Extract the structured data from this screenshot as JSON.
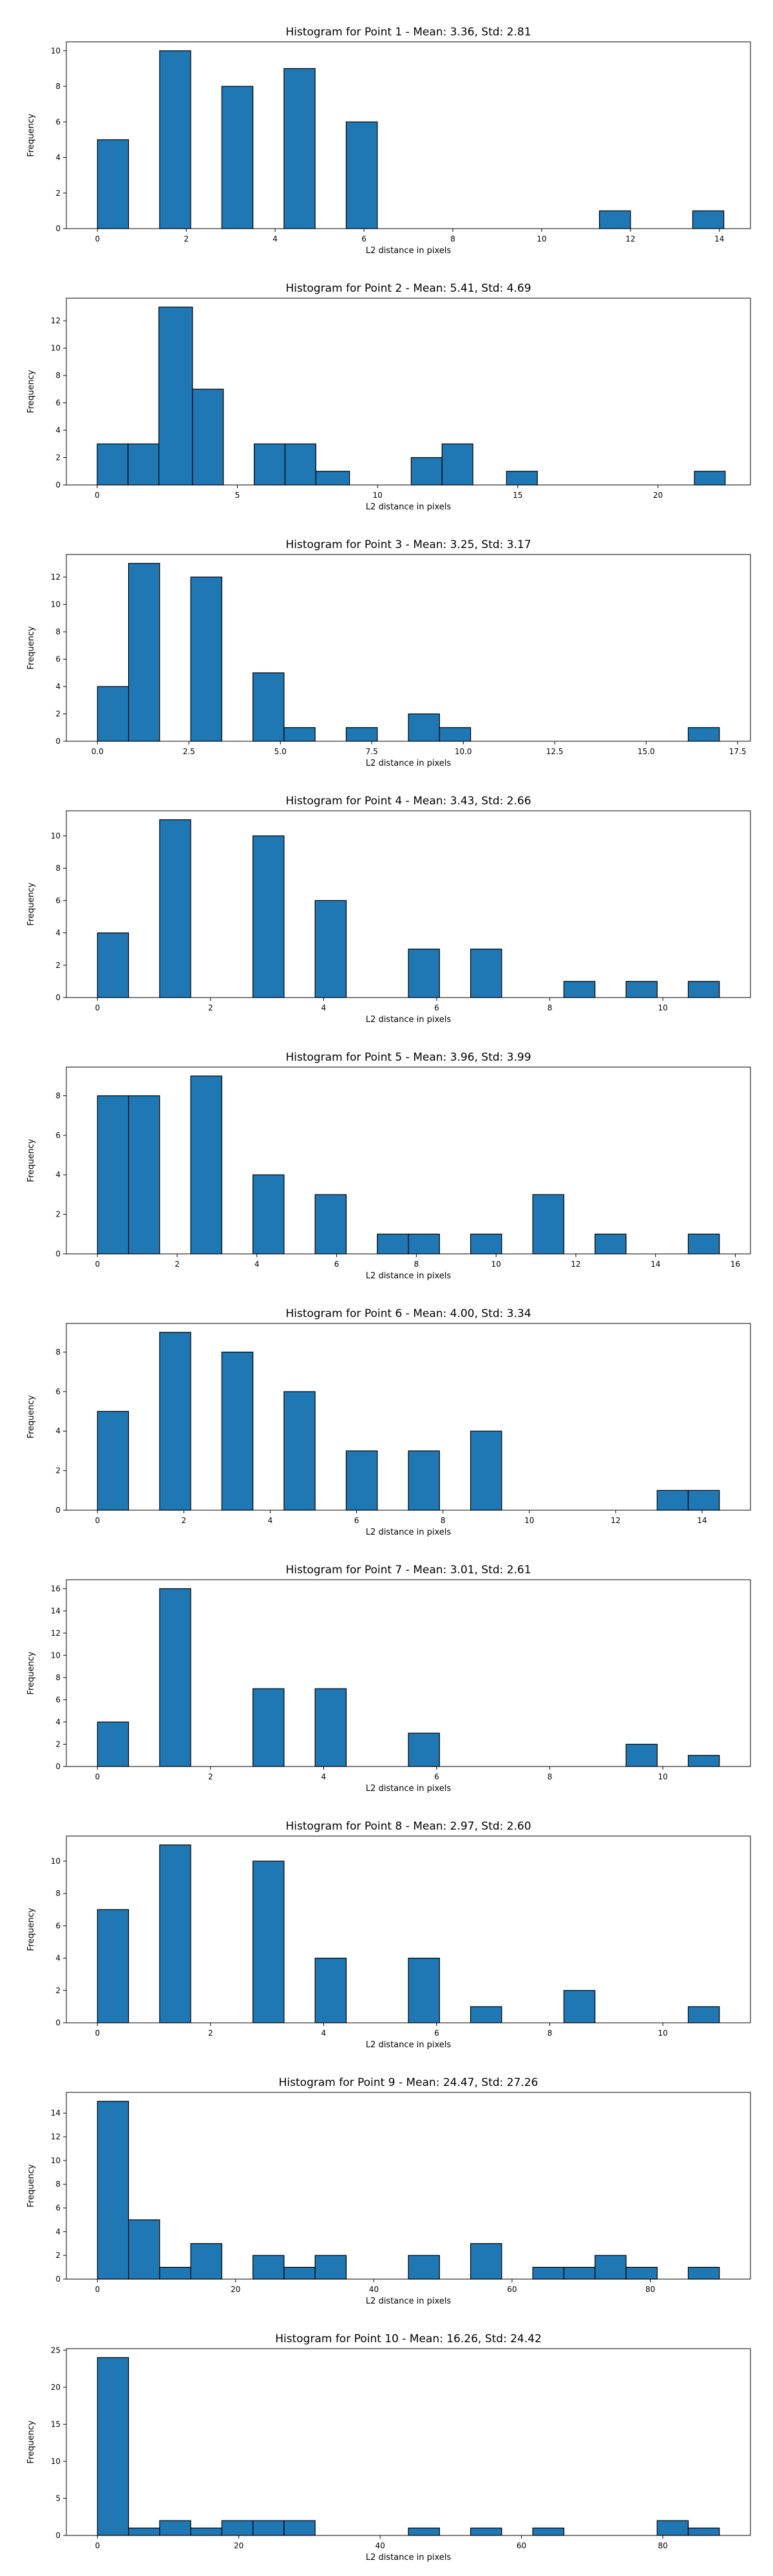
{
  "figure": {
    "background": "#ffffff",
    "bar_color": "#1f77b4",
    "edge_color": "#000000"
  },
  "chart_data": [
    {
      "type": "bar",
      "title": "Histogram for Point 1 - Mean: 3.36, Std: 2.81",
      "xlabel": "L2 distance in pixels",
      "ylabel": "Frequency",
      "xlim": [
        -0.7,
        14.7
      ],
      "ylim": [
        0,
        10.5
      ],
      "xticks": [
        0,
        2,
        4,
        6,
        8,
        10,
        12,
        14
      ],
      "xtick_labels": [
        "0",
        "2",
        "4",
        "6",
        "8",
        "10",
        "12",
        "14"
      ],
      "yticks": [
        0,
        2,
        4,
        6,
        8,
        10
      ],
      "bins": [
        [
          0,
          0.7,
          5
        ],
        [
          1.4,
          2.1,
          10
        ],
        [
          2.8,
          3.5,
          8
        ],
        [
          4.2,
          4.9,
          9
        ],
        [
          5.6,
          6.3,
          6
        ],
        [
          11.3,
          12.0,
          1
        ],
        [
          13.4,
          14.1,
          1
        ]
      ]
    },
    {
      "type": "bar",
      "title": "Histogram for Point 2 - Mean: 5.41, Std: 4.69",
      "xlabel": "L2 distance in pixels",
      "ylabel": "Frequency",
      "xlim": [
        -1.1,
        23.3
      ],
      "ylim": [
        0,
        13.65
      ],
      "xticks": [
        0,
        5,
        10,
        15,
        20
      ],
      "xtick_labels": [
        "0",
        "5",
        "10",
        "15",
        "20"
      ],
      "yticks": [
        0,
        2,
        4,
        6,
        8,
        10,
        12
      ],
      "bins": [
        [
          0,
          1.1,
          3
        ],
        [
          1.1,
          2.2,
          3
        ],
        [
          2.2,
          3.4,
          13
        ],
        [
          3.4,
          4.5,
          7
        ],
        [
          5.6,
          6.7,
          3
        ],
        [
          6.7,
          7.8,
          3
        ],
        [
          7.8,
          9.0,
          1
        ],
        [
          11.2,
          12.3,
          2
        ],
        [
          12.3,
          13.4,
          3
        ],
        [
          14.6,
          15.7,
          1
        ],
        [
          21.3,
          22.4,
          1
        ]
      ]
    },
    {
      "type": "bar",
      "title": "Histogram for Point 3 - Mean: 3.25, Std: 3.17",
      "xlabel": "L2 distance in pixels",
      "ylabel": "Frequency",
      "xlim": [
        -0.85,
        17.85
      ],
      "ylim": [
        0,
        13.65
      ],
      "xticks": [
        0,
        2.5,
        5,
        7.5,
        10,
        12.5,
        15,
        17.5
      ],
      "xtick_labels": [
        "0.0",
        "2.5",
        "5.0",
        "7.5",
        "10.0",
        "12.5",
        "15.0",
        "17.5"
      ],
      "yticks": [
        0,
        2,
        4,
        6,
        8,
        10,
        12
      ],
      "bins": [
        [
          0,
          0.85,
          4
        ],
        [
          0.85,
          1.7,
          13
        ],
        [
          2.55,
          3.4,
          12
        ],
        [
          4.25,
          5.1,
          5
        ],
        [
          5.1,
          5.95,
          1
        ],
        [
          6.8,
          7.65,
          1
        ],
        [
          8.5,
          9.35,
          2
        ],
        [
          9.35,
          10.2,
          1
        ],
        [
          16.15,
          17.0,
          1
        ]
      ]
    },
    {
      "type": "bar",
      "title": "Histogram for Point 4 - Mean: 3.43, Std: 2.66",
      "xlabel": "L2 distance in pixels",
      "ylabel": "Frequency",
      "xlim": [
        -0.55,
        11.55
      ],
      "ylim": [
        0,
        11.55
      ],
      "xticks": [
        0,
        2,
        4,
        6,
        8,
        10
      ],
      "xtick_labels": [
        "0",
        "2",
        "4",
        "6",
        "8",
        "10"
      ],
      "yticks": [
        0,
        2,
        4,
        6,
        8,
        10
      ],
      "bins": [
        [
          0,
          0.55,
          4
        ],
        [
          1.1,
          1.65,
          11
        ],
        [
          2.75,
          3.3,
          10
        ],
        [
          3.85,
          4.4,
          6
        ],
        [
          5.5,
          6.05,
          3
        ],
        [
          6.6,
          7.15,
          3
        ],
        [
          8.25,
          8.8,
          1
        ],
        [
          9.35,
          9.9,
          1
        ],
        [
          10.45,
          11.0,
          1
        ]
      ]
    },
    {
      "type": "bar",
      "title": "Histogram for Point 5 - Mean: 3.96, Std: 3.99",
      "xlabel": "L2 distance in pixels",
      "ylabel": "Frequency",
      "xlim": [
        -0.78,
        16.38
      ],
      "ylim": [
        0,
        9.45
      ],
      "xticks": [
        0,
        2,
        4,
        6,
        8,
        10,
        12,
        14,
        16
      ],
      "xtick_labels": [
        "0",
        "2",
        "4",
        "6",
        "8",
        "10",
        "12",
        "14",
        "16"
      ],
      "yticks": [
        0,
        2,
        4,
        6,
        8
      ],
      "bins": [
        [
          0,
          0.78,
          8
        ],
        [
          0.78,
          1.56,
          8
        ],
        [
          2.34,
          3.12,
          9
        ],
        [
          3.9,
          4.68,
          4
        ],
        [
          5.46,
          6.24,
          3
        ],
        [
          7.02,
          7.8,
          1
        ],
        [
          7.8,
          8.58,
          1
        ],
        [
          9.36,
          10.14,
          1
        ],
        [
          10.92,
          11.7,
          3
        ],
        [
          12.48,
          13.26,
          1
        ],
        [
          14.82,
          15.6,
          1
        ]
      ]
    },
    {
      "type": "bar",
      "title": "Histogram for Point 6 - Mean: 4.00, Std: 3.34",
      "xlabel": "L2 distance in pixels",
      "ylabel": "Frequency",
      "xlim": [
        -0.72,
        15.12
      ],
      "ylim": [
        0,
        9.45
      ],
      "xticks": [
        0,
        2,
        4,
        6,
        8,
        10,
        12,
        14
      ],
      "xtick_labels": [
        "0",
        "2",
        "4",
        "6",
        "8",
        "10",
        "12",
        "14"
      ],
      "yticks": [
        0,
        2,
        4,
        6,
        8
      ],
      "bins": [
        [
          0,
          0.72,
          5
        ],
        [
          1.44,
          2.16,
          9
        ],
        [
          2.88,
          3.6,
          8
        ],
        [
          4.32,
          5.04,
          6
        ],
        [
          5.76,
          6.48,
          3
        ],
        [
          7.2,
          7.92,
          3
        ],
        [
          8.64,
          9.36,
          4
        ],
        [
          12.96,
          13.68,
          1
        ],
        [
          13.68,
          14.4,
          1
        ]
      ]
    },
    {
      "type": "bar",
      "title": "Histogram for Point 7 - Mean: 3.01, Std: 2.61",
      "xlabel": "L2 distance in pixels",
      "ylabel": "Frequency",
      "xlim": [
        -0.55,
        11.55
      ],
      "ylim": [
        0,
        16.8
      ],
      "xticks": [
        0,
        2,
        4,
        6,
        8,
        10
      ],
      "xtick_labels": [
        "0",
        "2",
        "4",
        "6",
        "8",
        "10"
      ],
      "yticks": [
        0,
        2,
        4,
        6,
        8,
        10,
        12,
        14,
        16
      ],
      "bins": [
        [
          0,
          0.55,
          4
        ],
        [
          1.1,
          1.65,
          16
        ],
        [
          2.75,
          3.3,
          7
        ],
        [
          3.85,
          4.4,
          7
        ],
        [
          5.5,
          6.05,
          3
        ],
        [
          9.35,
          9.9,
          2
        ],
        [
          10.45,
          11.0,
          1
        ]
      ]
    },
    {
      "type": "bar",
      "title": "Histogram for Point 8 - Mean: 2.97, Std: 2.60",
      "xlabel": "L2 distance in pixels",
      "ylabel": "Frequency",
      "xlim": [
        -0.55,
        11.55
      ],
      "ylim": [
        0,
        11.55
      ],
      "xticks": [
        0,
        2,
        4,
        6,
        8,
        10
      ],
      "xtick_labels": [
        "0",
        "2",
        "4",
        "6",
        "8",
        "10"
      ],
      "yticks": [
        0,
        2,
        4,
        6,
        8,
        10
      ],
      "bins": [
        [
          0,
          0.55,
          7
        ],
        [
          1.1,
          1.65,
          11
        ],
        [
          2.75,
          3.3,
          10
        ],
        [
          3.85,
          4.4,
          4
        ],
        [
          5.5,
          6.05,
          4
        ],
        [
          6.6,
          7.15,
          1
        ],
        [
          8.25,
          8.8,
          2
        ],
        [
          10.45,
          11.0,
          1
        ]
      ]
    },
    {
      "type": "bar",
      "title": "Histogram for Point 9 - Mean: 24.47, Std: 27.26",
      "xlabel": "L2 distance in pixels",
      "ylabel": "Frequency",
      "xlim": [
        -4.5,
        94.5
      ],
      "ylim": [
        0,
        15.75
      ],
      "xticks": [
        0,
        20,
        40,
        60,
        80
      ],
      "xtick_labels": [
        "0",
        "20",
        "40",
        "60",
        "80"
      ],
      "yticks": [
        0,
        2,
        4,
        6,
        8,
        10,
        12,
        14
      ],
      "bins": [
        [
          0,
          4.5,
          15
        ],
        [
          4.5,
          9,
          5
        ],
        [
          9,
          13.5,
          1
        ],
        [
          13.5,
          18,
          3
        ],
        [
          22.5,
          27,
          2
        ],
        [
          27,
          31.5,
          1
        ],
        [
          31.5,
          36,
          2
        ],
        [
          45,
          49.5,
          2
        ],
        [
          54,
          58.5,
          3
        ],
        [
          63,
          67.5,
          1
        ],
        [
          67.5,
          72,
          1
        ],
        [
          72,
          76.5,
          2
        ],
        [
          76.5,
          81,
          1
        ],
        [
          85.5,
          90,
          1
        ]
      ]
    },
    {
      "type": "bar",
      "title": "Histogram for Point 10 - Mean: 16.26, Std: 24.42",
      "xlabel": "L2 distance in pixels",
      "ylabel": "Frequency",
      "xlim": [
        -4.4,
        92.4
      ],
      "ylim": [
        0,
        25.2
      ],
      "xticks": [
        0,
        20,
        40,
        60,
        80
      ],
      "xtick_labels": [
        "0",
        "20",
        "40",
        "60",
        "80"
      ],
      "yticks": [
        0,
        5,
        10,
        15,
        20,
        25
      ],
      "bins": [
        [
          0,
          4.4,
          24
        ],
        [
          4.4,
          8.8,
          1
        ],
        [
          8.8,
          13.2,
          2
        ],
        [
          13.2,
          17.6,
          1
        ],
        [
          17.6,
          22,
          2
        ],
        [
          22,
          26.4,
          2
        ],
        [
          26.4,
          30.8,
          2
        ],
        [
          44,
          48.4,
          1
        ],
        [
          52.8,
          57.2,
          1
        ],
        [
          61.6,
          66,
          1
        ],
        [
          79.2,
          83.6,
          2
        ],
        [
          83.6,
          88,
          1
        ]
      ]
    }
  ]
}
